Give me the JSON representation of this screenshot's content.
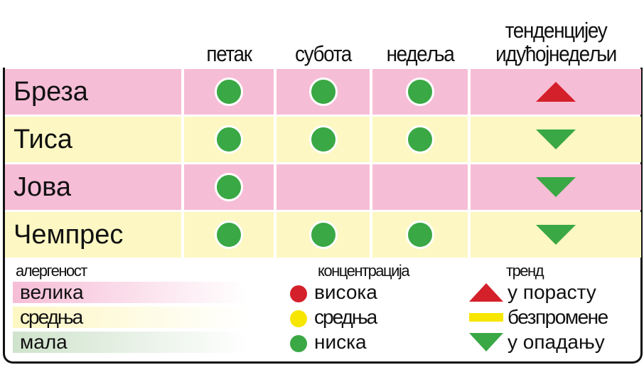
{
  "header": {
    "columns": [
      "петак",
      "субота",
      "недеља"
    ],
    "trend": "тенденцијеу идућојнедељи"
  },
  "colors": {
    "pink": "#f6bdd6",
    "yellow": "#fdf7c3",
    "green": "#3aa844",
    "red": "#d4202a",
    "mustard": "#f7e600"
  },
  "rows": [
    {
      "name": "Бреза",
      "allergenicity": "велика",
      "days": [
        "ниска",
        "ниска",
        "ниска"
      ],
      "trend": "у порасту"
    },
    {
      "name": "Тиса",
      "allergenicity": "средња",
      "days": [
        "ниска",
        "ниска",
        "ниска"
      ],
      "trend": "у опадању"
    },
    {
      "name": "Јова",
      "allergenicity": "велика",
      "days": [
        "ниска",
        null,
        null
      ],
      "trend": "у опадању"
    },
    {
      "name": "Чемпрес",
      "allergenicity": "средња",
      "days": [
        "ниска",
        "ниска",
        "ниска"
      ],
      "trend": "у опадању"
    }
  ],
  "legend": {
    "allergenicity": {
      "title": "алергеност",
      "items": [
        "велика",
        "средња",
        "мала"
      ]
    },
    "concentration": {
      "title": "концентрација",
      "items": [
        "висока",
        "средња",
        "ниска"
      ]
    },
    "trend": {
      "title": "тренд",
      "items": [
        "у порасту",
        "безпромене",
        "у опадању"
      ]
    }
  }
}
